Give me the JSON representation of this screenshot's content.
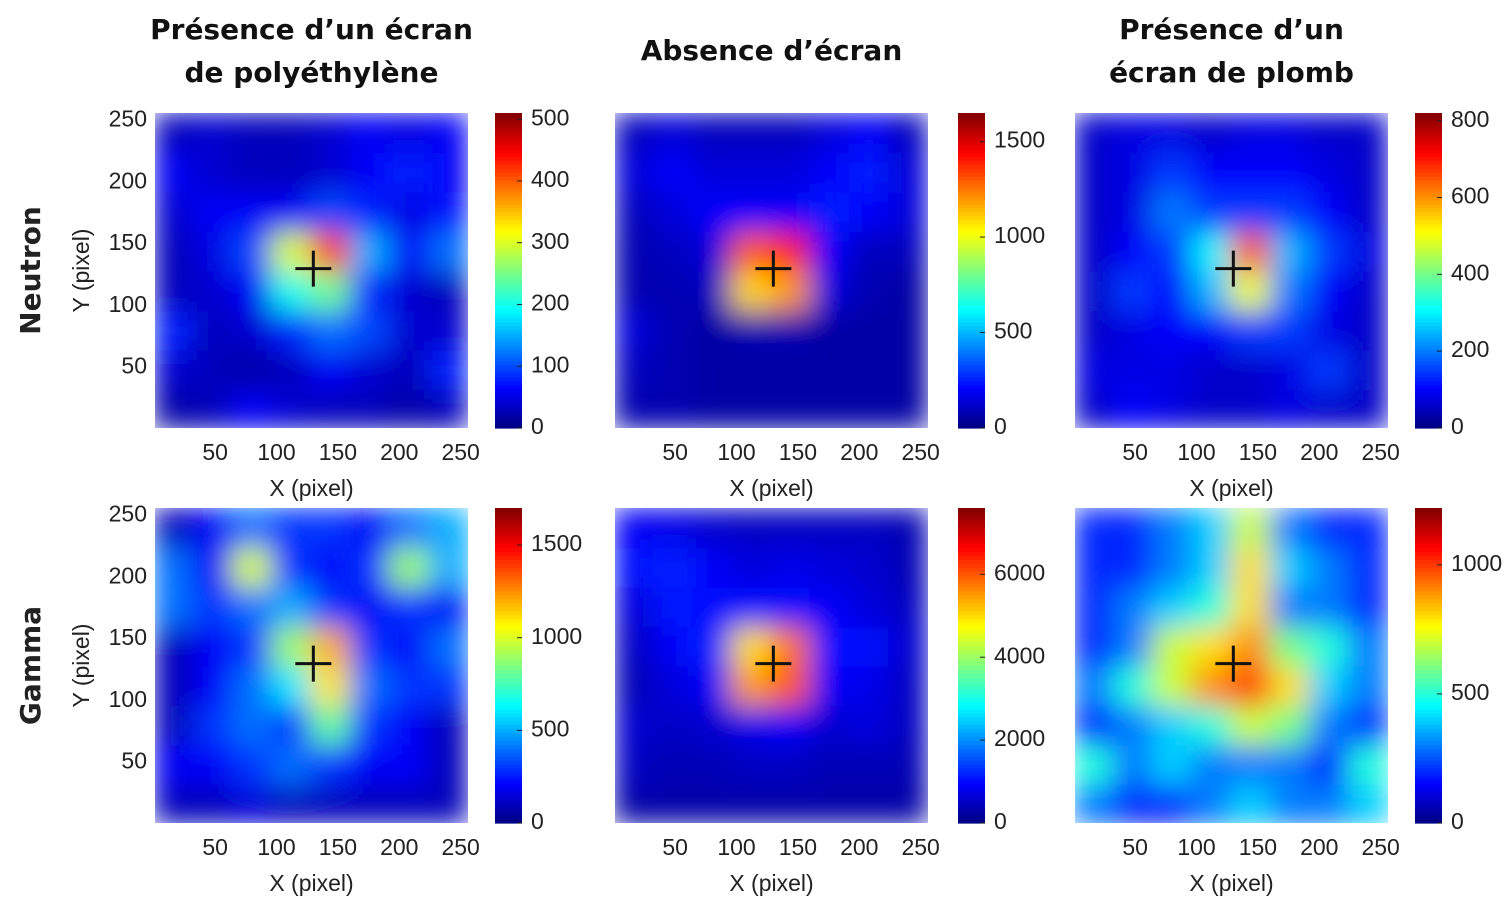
{
  "chart_data": [
    {
      "type": "heatmap",
      "title": "Présence d’un écran\nde polyéthylène",
      "row_label": "Neutron",
      "colormap": "jet",
      "x_label": "X (pixel)",
      "y_label": "Y (pixel)",
      "xlim": [
        1,
        256
      ],
      "ylim": [
        1,
        256
      ],
      "xticks": [
        50,
        100,
        150,
        200,
        250
      ],
      "yticks": [
        50,
        100,
        150,
        200,
        250
      ],
      "clim": [
        0,
        510
      ],
      "cticks": [
        0,
        100,
        200,
        300,
        400,
        500
      ],
      "marker": {
        "x": 130,
        "y": 130
      },
      "x": [
        16,
        48,
        80,
        112,
        144,
        176,
        208,
        240
      ],
      "y": [
        16,
        48,
        80,
        112,
        144,
        176,
        208,
        240
      ],
      "z": [
        [
          20,
          30,
          60,
          40,
          30,
          30,
          20,
          30
        ],
        [
          40,
          30,
          20,
          30,
          60,
          40,
          30,
          80
        ],
        [
          80,
          30,
          40,
          80,
          120,
          100,
          40,
          40
        ],
        [
          30,
          40,
          60,
          200,
          250,
          80,
          40,
          30
        ],
        [
          30,
          50,
          100,
          300,
          420,
          150,
          60,
          120
        ],
        [
          40,
          60,
          60,
          60,
          100,
          80,
          50,
          70
        ],
        [
          60,
          40,
          30,
          30,
          40,
          60,
          80,
          60
        ],
        [
          30,
          40,
          30,
          30,
          40,
          60,
          50,
          60
        ]
      ]
    },
    {
      "type": "heatmap",
      "title": "Absence d’écran",
      "colormap": "jet",
      "x_label": "X (pixel)",
      "xlim": [
        1,
        256
      ],
      "ylim": [
        1,
        256
      ],
      "xticks": [
        50,
        100,
        150,
        200,
        250
      ],
      "clim": [
        0,
        1650
      ],
      "cticks": [
        0,
        500,
        1000,
        1500
      ],
      "marker": {
        "x": 130,
        "y": 130
      },
      "x": [
        16,
        48,
        80,
        112,
        144,
        176,
        208,
        240
      ],
      "y": [
        16,
        48,
        80,
        112,
        144,
        176,
        208,
        240
      ],
      "z": [
        [
          80,
          80,
          60,
          60,
          60,
          60,
          60,
          60
        ],
        [
          100,
          80,
          60,
          60,
          60,
          60,
          60,
          60
        ],
        [
          150,
          80,
          60,
          80,
          80,
          60,
          60,
          60
        ],
        [
          80,
          80,
          100,
          1100,
          1200,
          150,
          80,
          60
        ],
        [
          80,
          100,
          150,
          1300,
          1400,
          200,
          100,
          100
        ],
        [
          100,
          150,
          200,
          200,
          200,
          250,
          200,
          150
        ],
        [
          150,
          200,
          150,
          150,
          150,
          200,
          250,
          150
        ],
        [
          100,
          150,
          100,
          100,
          100,
          150,
          200,
          100
        ]
      ]
    },
    {
      "type": "heatmap",
      "title": "Présence d’un\nécran de plomb",
      "colormap": "jet",
      "x_label": "X (pixel)",
      "xlim": [
        1,
        256
      ],
      "ylim": [
        1,
        256
      ],
      "xticks": [
        50,
        100,
        150,
        200,
        250
      ],
      "clim": [
        0,
        820
      ],
      "cticks": [
        0,
        200,
        400,
        600,
        800
      ],
      "marker": {
        "x": 130,
        "y": 130
      },
      "x": [
        16,
        48,
        80,
        112,
        144,
        176,
        208,
        240
      ],
      "y": [
        16,
        48,
        80,
        112,
        144,
        176,
        208,
        240
      ],
      "z": [
        [
          60,
          100,
          80,
          60,
          60,
          80,
          60,
          60
        ],
        [
          80,
          80,
          80,
          60,
          60,
          80,
          150,
          60
        ],
        [
          60,
          80,
          100,
          100,
          150,
          150,
          80,
          60
        ],
        [
          60,
          150,
          100,
          250,
          500,
          200,
          100,
          60
        ],
        [
          60,
          100,
          150,
          300,
          650,
          250,
          150,
          80
        ],
        [
          60,
          80,
          200,
          150,
          150,
          150,
          100,
          60
        ],
        [
          60,
          80,
          150,
          100,
          100,
          100,
          80,
          60
        ],
        [
          60,
          80,
          80,
          60,
          80,
          80,
          60,
          60
        ]
      ]
    },
    {
      "type": "heatmap",
      "row_label": "Gamma",
      "colormap": "jet",
      "x_label": "X (pixel)",
      "y_label": "Y (pixel)",
      "xlim": [
        1,
        256
      ],
      "ylim": [
        1,
        256
      ],
      "xticks": [
        50,
        100,
        150,
        200,
        250
      ],
      "yticks": [
        50,
        100,
        150,
        200,
        250
      ],
      "clim": [
        0,
        1700
      ],
      "cticks": [
        0,
        500,
        1000,
        1500
      ],
      "marker": {
        "x": 130,
        "y": 130
      },
      "x": [
        16,
        48,
        80,
        112,
        144,
        176,
        208,
        240
      ],
      "y": [
        16,
        48,
        80,
        112,
        144,
        176,
        208,
        240
      ],
      "z": [
        [
          100,
          100,
          150,
          100,
          100,
          100,
          100,
          100
        ],
        [
          200,
          200,
          300,
          400,
          300,
          200,
          200,
          100
        ],
        [
          100,
          300,
          400,
          300,
          800,
          300,
          200,
          100
        ],
        [
          100,
          200,
          400,
          600,
          1100,
          400,
          300,
          300
        ],
        [
          100,
          200,
          300,
          900,
          1200,
          300,
          200,
          400
        ],
        [
          400,
          300,
          400,
          500,
          300,
          200,
          300,
          200
        ],
        [
          400,
          200,
          1000,
          300,
          200,
          300,
          900,
          500
        ],
        [
          100,
          200,
          400,
          300,
          300,
          200,
          400,
          500
        ]
      ]
    },
    {
      "type": "heatmap",
      "colormap": "jet",
      "x_label": "X (pixel)",
      "xlim": [
        1,
        256
      ],
      "ylim": [
        1,
        256
      ],
      "xticks": [
        50,
        100,
        150,
        200,
        250
      ],
      "clim": [
        0,
        7600
      ],
      "cticks": [
        0,
        2000,
        4000,
        6000
      ],
      "marker": {
        "x": 130,
        "y": 130
      },
      "x": [
        16,
        48,
        80,
        112,
        144,
        176,
        208,
        240
      ],
      "y": [
        16,
        48,
        80,
        112,
        144,
        176,
        208,
        240
      ],
      "z": [
        [
          300,
          300,
          300,
          300,
          300,
          300,
          300,
          300
        ],
        [
          500,
          400,
          400,
          500,
          500,
          400,
          400,
          400
        ],
        [
          600,
          500,
          600,
          800,
          900,
          600,
          700,
          500
        ],
        [
          400,
          700,
          900,
          5500,
          6000,
          900,
          800,
          500
        ],
        [
          500,
          900,
          1200,
          5000,
          5800,
          1000,
          1000,
          600
        ],
        [
          700,
          1100,
          1000,
          1000,
          1000,
          900,
          700,
          500
        ],
        [
          1000,
          1200,
          900,
          700,
          800,
          700,
          600,
          400
        ],
        [
          900,
          800,
          600,
          500,
          500,
          500,
          500,
          400
        ]
      ]
    },
    {
      "type": "heatmap",
      "colormap": "jet",
      "x_label": "X (pixel)",
      "xlim": [
        1,
        256
      ],
      "ylim": [
        1,
        256
      ],
      "xticks": [
        50,
        100,
        150,
        200,
        250
      ],
      "clim": [
        0,
        1220
      ],
      "cticks": [
        0,
        500,
        1000
      ],
      "marker": {
        "x": 130,
        "y": 130
      },
      "x": [
        16,
        48,
        80,
        112,
        144,
        176,
        208,
        240
      ],
      "y": [
        16,
        48,
        80,
        112,
        144,
        176,
        208,
        240
      ],
      "z": [
        [
          300,
          200,
          200,
          300,
          400,
          300,
          300,
          400
        ],
        [
          500,
          300,
          400,
          300,
          300,
          300,
          200,
          500
        ],
        [
          200,
          300,
          400,
          500,
          700,
          600,
          300,
          200
        ],
        [
          300,
          500,
          700,
          900,
          1000,
          800,
          400,
          300
        ],
        [
          200,
          300,
          700,
          800,
          900,
          600,
          500,
          300
        ],
        [
          200,
          300,
          400,
          500,
          800,
          300,
          300,
          200
        ],
        [
          200,
          200,
          300,
          400,
          800,
          400,
          300,
          200
        ],
        [
          200,
          200,
          300,
          400,
          700,
          300,
          200,
          200
        ]
      ]
    }
  ]
}
